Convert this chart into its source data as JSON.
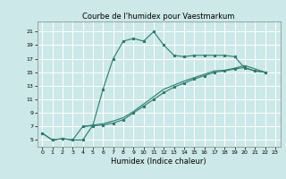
{
  "title": "Courbe de l'humidex pour Vaestmarkum",
  "xlabel": "Humidex (Indice chaleur)",
  "bg_color": "#cce8e8",
  "grid_color": "#ffffff",
  "line_color": "#2d7a6e",
  "xlim": [
    -0.5,
    23.5
  ],
  "ylim": [
    4,
    22.5
  ],
  "xticks": [
    0,
    1,
    2,
    3,
    4,
    5,
    6,
    7,
    8,
    9,
    10,
    11,
    12,
    13,
    14,
    15,
    16,
    17,
    18,
    19,
    20,
    21,
    22,
    23
  ],
  "yticks": [
    5,
    7,
    9,
    11,
    13,
    15,
    17,
    19,
    21
  ],
  "line1_x": [
    0,
    1,
    2,
    3,
    4,
    5,
    6,
    7,
    8,
    9,
    10,
    11,
    12,
    13,
    14,
    15,
    16,
    17,
    18,
    19,
    20,
    21,
    22
  ],
  "line1_y": [
    6,
    5,
    5.2,
    5,
    5,
    7.2,
    12.5,
    17,
    19.6,
    20.0,
    19.6,
    21,
    19.0,
    17.5,
    17.3,
    17.5,
    17.5,
    17.5,
    17.5,
    17.3,
    15.6,
    15.2,
    15.0
  ],
  "line2_x": [
    0,
    1,
    2,
    3,
    4,
    5,
    6,
    7,
    8,
    9,
    10,
    11,
    12,
    13,
    14,
    15,
    16,
    17,
    18,
    19,
    20,
    21,
    22
  ],
  "line2_y": [
    6,
    5,
    5.2,
    5,
    7,
    7.1,
    7.2,
    7.5,
    8.0,
    9.0,
    10.0,
    11.0,
    12.0,
    12.8,
    13.4,
    14.0,
    14.5,
    15.0,
    15.2,
    15.5,
    15.7,
    15.2,
    15.0
  ],
  "line3_x": [
    4,
    5,
    6,
    7,
    8,
    9,
    10,
    11,
    12,
    13,
    14,
    15,
    16,
    17,
    18,
    19,
    20,
    21,
    22
  ],
  "line3_y": [
    7,
    7.2,
    7.4,
    7.8,
    8.3,
    9.2,
    10.3,
    11.4,
    12.5,
    13.1,
    13.7,
    14.2,
    14.7,
    15.2,
    15.3,
    15.6,
    16.0,
    15.5,
    15.0
  ],
  "title_fontsize": 6,
  "xlabel_fontsize": 6,
  "tick_fontsize": 4.5,
  "linewidth": 0.8,
  "markersize": 2.0
}
